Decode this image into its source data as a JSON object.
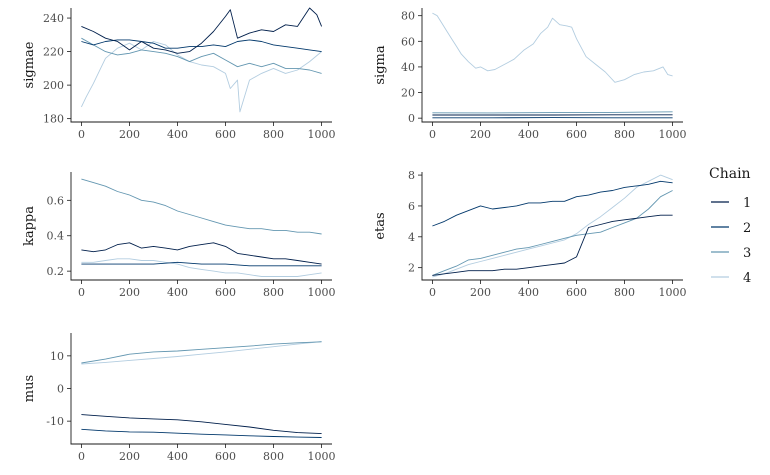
{
  "chart_data": {
    "type": "line",
    "legend": {
      "title": "Chain",
      "position": "right",
      "entries": [
        {
          "label": "1",
          "color": "#011f4b"
        },
        {
          "label": "2",
          "color": "#03396c"
        },
        {
          "label": "3",
          "color": "#6497b1"
        },
        {
          "label": "4",
          "color": "#b3cde0"
        }
      ]
    },
    "grid": false,
    "panels": [
      {
        "ylabel": "sigmae",
        "xlim": [
          0,
          1000
        ],
        "ylim": [
          178,
          246
        ],
        "xticks": [
          0,
          200,
          400,
          600,
          800,
          1000
        ],
        "yticks": [
          180,
          200,
          220,
          240
        ],
        "series": [
          {
            "chain": "1",
            "x": [
              0,
              50,
              100,
              150,
              200,
              250,
              300,
              350,
              400,
              450,
              500,
              550,
              600,
              620,
              650,
              700,
              750,
              800,
              850,
              900,
              950,
              980,
              1000
            ],
            "y": [
              235,
              232,
              228,
              226,
              221,
              226,
              222,
              221,
              219,
              220,
              225,
              232,
              241,
              245,
              228,
              231,
              233,
              232,
              236,
              235,
              246,
              242,
              235
            ]
          },
          {
            "chain": "2",
            "x": [
              0,
              50,
              100,
              150,
              200,
              250,
              300,
              350,
              400,
              450,
              500,
              550,
              600,
              650,
              700,
              750,
              800,
              850,
              900,
              950,
              1000
            ],
            "y": [
              226,
              224,
              226,
              227,
              227,
              226,
              225,
              222,
              222,
              223,
              223,
              224,
              223,
              226,
              227,
              226,
              224,
              223,
              222,
              221,
              220
            ]
          },
          {
            "chain": "3",
            "x": [
              0,
              50,
              100,
              150,
              200,
              250,
              300,
              350,
              400,
              450,
              500,
              550,
              600,
              650,
              700,
              750,
              800,
              850,
              900,
              950,
              1000
            ],
            "y": [
              228,
              224,
              220,
              218,
              219,
              221,
              220,
              219,
              217,
              214,
              217,
              219,
              215,
              211,
              213,
              211,
              213,
              210,
              210,
              209,
              207
            ]
          },
          {
            "chain": "4",
            "x": [
              0,
              20,
              50,
              80,
              100,
              150,
              200,
              250,
              300,
              350,
              400,
              450,
              500,
              550,
              600,
              620,
              650,
              660,
              700,
              750,
              800,
              850,
              900,
              950,
              1000
            ],
            "y": [
              187,
              193,
              201,
              210,
              216,
              222,
              225,
              221,
              226,
              224,
              218,
              214,
              212,
              211,
              207,
              198,
              203,
              184,
              203,
              207,
              210,
              207,
              209,
              214,
              220
            ]
          }
        ]
      },
      {
        "ylabel": "sigma",
        "xlim": [
          0,
          1000
        ],
        "ylim": [
          -3,
          86
        ],
        "xticks": [
          0,
          200,
          400,
          600,
          800,
          1000
        ],
        "yticks": [
          0,
          20,
          40,
          60,
          80
        ],
        "series": [
          {
            "chain": "1",
            "x": [
              0,
              250,
              500,
              750,
              1000
            ],
            "y": [
              2.5,
              2.5,
              2.5,
              2.6,
              2.6
            ]
          },
          {
            "chain": "2",
            "x": [
              0,
              250,
              500,
              750,
              1000
            ],
            "y": [
              0.3,
              0.3,
              0.4,
              0.3,
              0.3
            ]
          },
          {
            "chain": "3",
            "x": [
              0,
              250,
              500,
              750,
              1000
            ],
            "y": [
              4.2,
              4.1,
              4.3,
              4.5,
              5.0
            ]
          },
          {
            "chain": "4",
            "x": [
              0,
              20,
              40,
              60,
              80,
              100,
              120,
              150,
              180,
              200,
              230,
              260,
              300,
              340,
              380,
              420,
              450,
              480,
              500,
              530,
              560,
              580,
              600,
              640,
              680,
              720,
              760,
              800,
              840,
              880,
              920,
              960,
              980,
              1000
            ],
            "y": [
              82,
              80,
              74,
              68,
              62,
              56,
              50,
              44,
              39,
              40,
              37,
              38,
              42,
              46,
              53,
              58,
              66,
              71,
              78,
              73,
              72,
              71,
              62,
              48,
              42,
              36,
              28,
              30,
              34,
              36,
              37,
              40,
              34,
              33
            ]
          }
        ]
      },
      {
        "ylabel": "kappa",
        "xlim": [
          0,
          1000
        ],
        "ylim": [
          0.15,
          0.76
        ],
        "xticks": [
          0,
          200,
          400,
          600,
          800,
          1000
        ],
        "yticks": [
          0.2,
          0.4,
          0.6
        ],
        "series": [
          {
            "chain": "1",
            "x": [
              0,
              50,
              100,
              150,
              200,
              250,
              300,
              350,
              400,
              450,
              500,
              550,
              600,
              650,
              700,
              750,
              800,
              850,
              900,
              950,
              1000
            ],
            "y": [
              0.32,
              0.31,
              0.32,
              0.35,
              0.36,
              0.33,
              0.34,
              0.33,
              0.32,
              0.34,
              0.35,
              0.36,
              0.34,
              0.3,
              0.29,
              0.28,
              0.27,
              0.27,
              0.26,
              0.25,
              0.24
            ]
          },
          {
            "chain": "2",
            "x": [
              0,
              100,
              200,
              300,
              400,
              500,
              600,
              700,
              800,
              900,
              1000
            ],
            "y": [
              0.24,
              0.24,
              0.24,
              0.24,
              0.25,
              0.24,
              0.24,
              0.23,
              0.23,
              0.23,
              0.23
            ]
          },
          {
            "chain": "3",
            "x": [
              0,
              50,
              100,
              150,
              200,
              250,
              300,
              350,
              400,
              450,
              500,
              550,
              600,
              650,
              700,
              750,
              800,
              850,
              900,
              950,
              1000
            ],
            "y": [
              0.72,
              0.7,
              0.68,
              0.65,
              0.63,
              0.6,
              0.59,
              0.57,
              0.54,
              0.52,
              0.5,
              0.48,
              0.46,
              0.45,
              0.44,
              0.44,
              0.43,
              0.43,
              0.42,
              0.42,
              0.41
            ]
          },
          {
            "chain": "4",
            "x": [
              0,
              50,
              100,
              150,
              200,
              250,
              300,
              350,
              400,
              450,
              500,
              550,
              600,
              650,
              700,
              750,
              800,
              850,
              900,
              950,
              1000
            ],
            "y": [
              0.25,
              0.25,
              0.26,
              0.27,
              0.27,
              0.26,
              0.26,
              0.25,
              0.24,
              0.22,
              0.21,
              0.2,
              0.19,
              0.19,
              0.18,
              0.17,
              0.17,
              0.17,
              0.17,
              0.18,
              0.19
            ]
          }
        ]
      },
      {
        "ylabel": "etas",
        "xlim": [
          0,
          1000
        ],
        "ylim": [
          1.2,
          8.2
        ],
        "xticks": [
          0,
          200,
          400,
          600,
          800,
          1000
        ],
        "yticks": [
          2,
          4,
          6,
          8
        ],
        "series": [
          {
            "chain": "1",
            "x": [
              0,
              50,
              100,
              150,
              200,
              250,
              300,
              350,
              400,
              450,
              500,
              550,
              600,
              650,
              700,
              750,
              800,
              850,
              900,
              950,
              1000
            ],
            "y": [
              1.5,
              1.6,
              1.7,
              1.8,
              1.8,
              1.8,
              1.9,
              1.9,
              2.0,
              2.1,
              2.2,
              2.3,
              2.7,
              4.6,
              4.8,
              5.0,
              5.1,
              5.2,
              5.3,
              5.4,
              5.4
            ]
          },
          {
            "chain": "2",
            "x": [
              0,
              50,
              100,
              150,
              200,
              250,
              300,
              350,
              400,
              450,
              500,
              550,
              600,
              650,
              700,
              750,
              800,
              850,
              900,
              950,
              1000
            ],
            "y": [
              4.7,
              5.0,
              5.4,
              5.7,
              6.0,
              5.8,
              5.9,
              6.0,
              6.2,
              6.2,
              6.3,
              6.3,
              6.6,
              6.7,
              6.9,
              7.0,
              7.2,
              7.3,
              7.4,
              7.6,
              7.5
            ]
          },
          {
            "chain": "3",
            "x": [
              0,
              50,
              100,
              150,
              200,
              250,
              300,
              350,
              400,
              450,
              500,
              550,
              600,
              650,
              700,
              750,
              800,
              850,
              900,
              950,
              1000
            ],
            "y": [
              1.5,
              1.8,
              2.1,
              2.5,
              2.6,
              2.8,
              3.0,
              3.2,
              3.3,
              3.5,
              3.7,
              3.9,
              4.1,
              4.2,
              4.3,
              4.6,
              4.9,
              5.2,
              5.8,
              6.6,
              7.0
            ]
          },
          {
            "chain": "4",
            "x": [
              0,
              50,
              100,
              150,
              200,
              250,
              300,
              350,
              400,
              450,
              500,
              550,
              600,
              650,
              700,
              750,
              800,
              850,
              900,
              950,
              1000
            ],
            "y": [
              1.4,
              1.6,
              1.9,
              2.2,
              2.4,
              2.6,
              2.8,
              3.0,
              3.2,
              3.4,
              3.6,
              3.8,
              4.2,
              4.8,
              5.3,
              5.9,
              6.5,
              7.2,
              7.6,
              8.0,
              7.7
            ]
          }
        ]
      },
      {
        "ylabel": "mus",
        "xlim": [
          0,
          1000
        ],
        "ylim": [
          -17,
          17
        ],
        "xticks": [
          0,
          200,
          400,
          600,
          800,
          1000
        ],
        "yticks": [
          -10,
          0,
          10
        ],
        "series": [
          {
            "chain": "1",
            "x": [
              0,
              100,
              200,
              300,
              400,
              500,
              600,
              700,
              800,
              900,
              1000
            ],
            "y": [
              -8.0,
              -8.5,
              -9.0,
              -9.3,
              -9.6,
              -10.2,
              -11.0,
              -11.8,
              -12.8,
              -13.5,
              -13.8
            ]
          },
          {
            "chain": "2",
            "x": [
              0,
              100,
              200,
              300,
              400,
              500,
              600,
              700,
              800,
              900,
              1000
            ],
            "y": [
              -12.5,
              -13.0,
              -13.3,
              -13.4,
              -13.7,
              -14.0,
              -14.2,
              -14.5,
              -14.7,
              -14.9,
              -15.0
            ]
          },
          {
            "chain": "3",
            "x": [
              0,
              100,
              200,
              300,
              400,
              500,
              600,
              700,
              800,
              900,
              1000
            ],
            "y": [
              7.8,
              9.0,
              10.5,
              11.2,
              11.5,
              12.0,
              12.5,
              13.0,
              13.6,
              14.0,
              14.3
            ]
          },
          {
            "chain": "4",
            "x": [
              0,
              100,
              200,
              300,
              400,
              500,
              600,
              700,
              800,
              900,
              1000
            ],
            "y": [
              7.5,
              8.0,
              8.6,
              9.2,
              9.8,
              10.5,
              11.2,
              12.0,
              12.8,
              13.6,
              14.4
            ]
          }
        ]
      }
    ]
  }
}
